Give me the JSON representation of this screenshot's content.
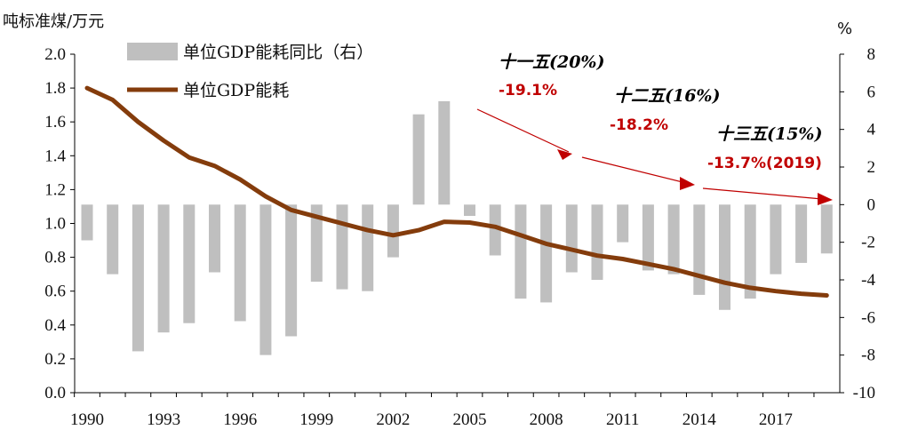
{
  "colors": {
    "bar": "#bfbfbf",
    "line": "#843c0c",
    "arrow": "#c00000",
    "axis": "#000000"
  },
  "left_axis": {
    "unit_label": "吨标准煤/万元",
    "ticks": [
      "2.0",
      "1.8",
      "1.6",
      "1.4",
      "1.2",
      "1.0",
      "0.8",
      "0.6",
      "0.4",
      "0.2",
      "0.0"
    ]
  },
  "right_axis": {
    "unit_label": "%",
    "ticks": [
      "8",
      "6",
      "4",
      "2",
      "0",
      "-2",
      "-4",
      "-6",
      "-8",
      "-10"
    ]
  },
  "x_axis": {
    "ticks": [
      "1990",
      "1993",
      "1996",
      "1999",
      "2002",
      "2005",
      "2008",
      "2011",
      "2014",
      "2017"
    ]
  },
  "legend": {
    "bar_label": "单位GDP能耗同比（右）",
    "line_label": "单位GDP能耗",
    "placement": "top-left"
  },
  "plans": [
    {
      "title": "十一五(20%)",
      "value": "-19.1%"
    },
    {
      "title": "十二五(16%)",
      "value": "-18.2%"
    },
    {
      "title": "十三五(15%)",
      "value": "-13.7%(2019)"
    }
  ],
  "chart_data": {
    "type": "bar",
    "x": [
      1990,
      1991,
      1992,
      1993,
      1994,
      1995,
      1996,
      1997,
      1998,
      1999,
      2000,
      2001,
      2002,
      2003,
      2004,
      2005,
      2006,
      2007,
      2008,
      2009,
      2010,
      2011,
      2012,
      2013,
      2014,
      2015,
      2016,
      2017,
      2018,
      2019
    ],
    "series": [
      {
        "name": "单位GDP能耗同比（右）",
        "type": "bar",
        "axis": "right",
        "values": [
          -1.9,
          -3.7,
          -7.8,
          -6.8,
          -6.3,
          -3.6,
          -6.2,
          -8.0,
          -7.0,
          -4.1,
          -4.5,
          -4.6,
          -2.8,
          4.8,
          5.5,
          -0.6,
          -2.7,
          -5.0,
          -5.2,
          -3.6,
          -4.0,
          -2.0,
          -3.5,
          -3.7,
          -4.8,
          -5.6,
          -5.0,
          -3.7,
          -3.1,
          -2.6
        ]
      },
      {
        "name": "单位GDP能耗",
        "type": "line",
        "axis": "left",
        "values": [
          1.8,
          1.73,
          1.6,
          1.49,
          1.39,
          1.34,
          1.26,
          1.16,
          1.08,
          1.04,
          1.0,
          0.96,
          0.93,
          0.96,
          1.01,
          1.005,
          0.98,
          0.93,
          0.88,
          0.845,
          0.81,
          0.79,
          0.76,
          0.73,
          0.69,
          0.65,
          0.62,
          0.6,
          0.585,
          0.575
        ]
      }
    ],
    "ylim_left": [
      0,
      2.0
    ],
    "ylim_right": [
      -10,
      8
    ],
    "grid": false
  }
}
